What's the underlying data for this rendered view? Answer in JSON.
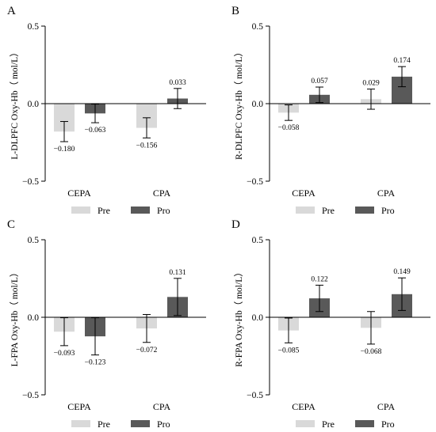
{
  "chart_data": [
    {
      "panel": "A",
      "type": "bar",
      "ylabel": "L-DLPFC Oxy-Hb（ mol/L）",
      "ylim": [
        -0.5,
        0.5
      ],
      "yticks": [
        "0.5",
        "0.0",
        "−0.5"
      ],
      "categories": [
        "CEPA",
        "CPA"
      ],
      "legend_position": "bottom",
      "series": [
        {
          "name": "Pre",
          "color": "#d9d9d9",
          "values": [
            -0.18,
            -0.156
          ],
          "errors": [
            0.065,
            0.065
          ],
          "labels": [
            "−0.180",
            "−0.156"
          ]
        },
        {
          "name": "Pro",
          "color": "#595959",
          "values": [
            -0.063,
            0.033
          ],
          "errors": [
            0.06,
            0.065
          ],
          "labels": [
            "−0.063",
            "0.033"
          ]
        }
      ]
    },
    {
      "panel": "B",
      "type": "bar",
      "ylabel": "R-DLPFC Oxy-Hb（ mol/L）",
      "ylim": [
        -0.5,
        0.5
      ],
      "yticks": [
        "0.5",
        "0.0",
        "−0.5"
      ],
      "categories": [
        "CEPA",
        "CPA"
      ],
      "legend_position": "bottom",
      "series": [
        {
          "name": "Pre",
          "color": "#d9d9d9",
          "values": [
            -0.058,
            0.029
          ],
          "errors": [
            0.05,
            0.065
          ],
          "labels": [
            "−0.058",
            "0.029"
          ]
        },
        {
          "name": "Pro",
          "color": "#595959",
          "values": [
            0.057,
            0.174
          ],
          "errors": [
            0.05,
            0.065
          ],
          "labels": [
            "0.057",
            "0.174"
          ]
        }
      ]
    },
    {
      "panel": "C",
      "type": "bar",
      "ylabel": "L-FPA Oxy-Hb（ mol/L）",
      "ylim": [
        -0.5,
        0.5
      ],
      "yticks": [
        "0.5",
        "0.0",
        "−0.5"
      ],
      "categories": [
        "CEPA",
        "CPA"
      ],
      "legend_position": "bottom",
      "series": [
        {
          "name": "Pre",
          "color": "#d9d9d9",
          "values": [
            -0.093,
            -0.072
          ],
          "errors": [
            0.09,
            0.09
          ],
          "labels": [
            "−0.093",
            "−0.072"
          ]
        },
        {
          "name": "Pro",
          "color": "#595959",
          "values": [
            -0.123,
            0.131
          ],
          "errors": [
            0.12,
            0.12
          ],
          "labels": [
            "−0.123",
            "0.131"
          ]
        }
      ]
    },
    {
      "panel": "D",
      "type": "bar",
      "ylabel": "R-FPA Oxy-Hb（ mol/L）",
      "ylim": [
        -0.5,
        0.5
      ],
      "yticks": [
        "0.5",
        "0.0",
        "−0.5"
      ],
      "categories": [
        "CEPA",
        "CPA"
      ],
      "legend_position": "bottom",
      "series": [
        {
          "name": "Pre",
          "color": "#d9d9d9",
          "values": [
            -0.085,
            -0.068
          ],
          "errors": [
            0.08,
            0.105
          ],
          "labels": [
            "−0.085",
            "−0.068"
          ]
        },
        {
          "name": "Pro",
          "color": "#595959",
          "values": [
            0.122,
            0.149
          ],
          "errors": [
            0.085,
            0.105
          ],
          "labels": [
            "0.122",
            "0.149"
          ]
        }
      ]
    }
  ]
}
